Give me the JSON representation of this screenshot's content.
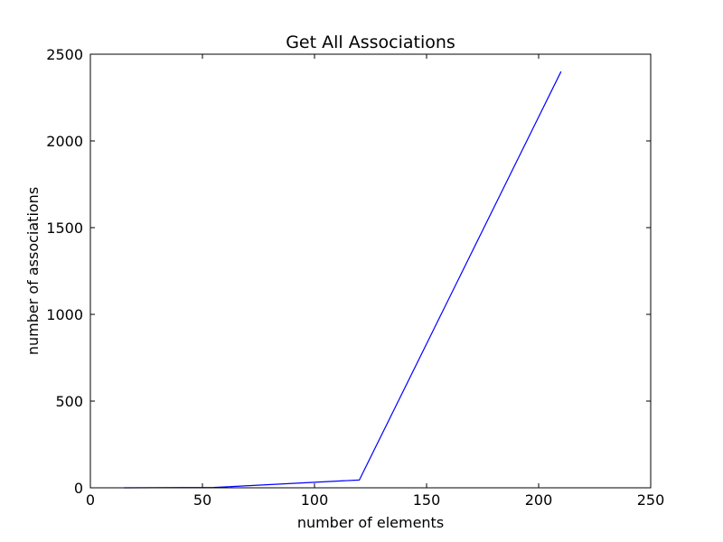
{
  "chart_data": {
    "type": "line",
    "title": "Get All Associations",
    "xlabel": "number of elements",
    "ylabel": "number of associations",
    "xlim": [
      0,
      250
    ],
    "ylim": [
      0,
      2500
    ],
    "xticks": [
      0,
      50,
      100,
      150,
      200,
      250
    ],
    "yticks": [
      0,
      500,
      1000,
      1500,
      2000,
      2500
    ],
    "xtick_labels": [
      "0",
      "50",
      "100",
      "150",
      "200",
      "250"
    ],
    "ytick_labels": [
      "0",
      "500",
      "1000",
      "1500",
      "2000",
      "2500"
    ],
    "grid": false,
    "series": [
      {
        "color": "#0000ff",
        "x": [
          15,
          55,
          120,
          210
        ],
        "y": [
          0,
          2,
          45,
          2400
        ]
      }
    ]
  }
}
